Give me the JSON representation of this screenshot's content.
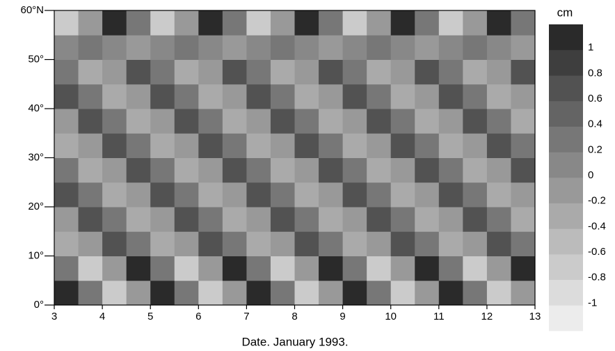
{
  "chart_data": {
    "type": "heatmap",
    "xlabel": "Date. January 1993.",
    "xlim": [
      3,
      13
    ],
    "xticks": [
      3,
      4,
      5,
      6,
      7,
      8,
      9,
      10,
      11,
      12,
      13
    ],
    "ylim": [
      0,
      60
    ],
    "yticks": [
      {
        "value": 0,
        "label": "0°"
      },
      {
        "value": 10,
        "label": "10°"
      },
      {
        "value": 20,
        "label": "20°"
      },
      {
        "value": 30,
        "label": "30°"
      },
      {
        "value": 40,
        "label": "40°"
      },
      {
        "value": 50,
        "label": "50°"
      },
      {
        "value": 60,
        "label": "60°N"
      }
    ],
    "x": [
      3.25,
      3.75,
      4.25,
      4.75,
      5.25,
      5.75,
      6.25,
      6.75,
      7.25,
      7.75,
      8.25,
      8.75,
      9.25,
      9.75,
      10.25,
      10.75,
      11.25,
      11.75,
      12.25,
      12.75
    ],
    "y": [
      2.5,
      7.5,
      12.5,
      17.5,
      22.5,
      27.5,
      32.5,
      37.5,
      42.5,
      47.5,
      52.5,
      57.5
    ],
    "z": [
      [
        1,
        0.2,
        -0.8,
        -0.2,
        1,
        0.2,
        -0.8,
        -0.2,
        1,
        0.2,
        -0.8,
        -0.2,
        1,
        0.2,
        -0.8,
        -0.2,
        1,
        0.2,
        -0.8,
        -0.2
      ],
      [
        0.2,
        -0.8,
        -0.2,
        1,
        0.2,
        -0.8,
        -0.2,
        1,
        0.2,
        -0.8,
        -0.2,
        1,
        0.2,
        -0.8,
        -0.2,
        1,
        0.2,
        -0.8,
        -0.2,
        1
      ],
      [
        -0.4,
        -0.2,
        0.6,
        0.2,
        -0.4,
        -0.2,
        0.6,
        0.2,
        -0.4,
        -0.2,
        0.6,
        0.2,
        -0.4,
        -0.2,
        0.6,
        0.2,
        -0.4,
        -0.2,
        0.6,
        0.2
      ],
      [
        -0.2,
        0.6,
        0.2,
        -0.4,
        -0.2,
        0.6,
        0.2,
        -0.4,
        -0.2,
        0.6,
        0.2,
        -0.4,
        -0.2,
        0.6,
        0.2,
        -0.4,
        -0.2,
        0.6,
        0.2,
        -0.4
      ],
      [
        0.6,
        0.2,
        -0.4,
        -0.2,
        0.6,
        0.2,
        -0.4,
        -0.2,
        0.6,
        0.2,
        -0.4,
        -0.2,
        0.6,
        0.2,
        -0.4,
        -0.2,
        0.6,
        0.2,
        -0.4,
        -0.2
      ],
      [
        0.2,
        -0.4,
        -0.2,
        0.6,
        0.2,
        -0.4,
        -0.2,
        0.6,
        0.2,
        -0.4,
        -0.2,
        0.6,
        0.2,
        -0.4,
        -0.2,
        0.6,
        0.2,
        -0.4,
        -0.2,
        0.6
      ],
      [
        -0.4,
        -0.2,
        0.6,
        0.2,
        -0.4,
        -0.2,
        0.6,
        0.2,
        -0.4,
        -0.2,
        0.6,
        0.2,
        -0.4,
        -0.2,
        0.6,
        0.2,
        -0.4,
        -0.2,
        0.6,
        0.2
      ],
      [
        -0.2,
        0.6,
        0.2,
        -0.4,
        -0.2,
        0.6,
        0.2,
        -0.4,
        -0.2,
        0.6,
        0.2,
        -0.4,
        -0.2,
        0.6,
        0.2,
        -0.4,
        -0.2,
        0.6,
        0.2,
        -0.4
      ],
      [
        0.6,
        0.2,
        -0.4,
        -0.2,
        0.6,
        0.2,
        -0.4,
        -0.2,
        0.6,
        0.2,
        -0.4,
        -0.2,
        0.6,
        0.2,
        -0.4,
        -0.2,
        0.6,
        0.2,
        -0.4,
        -0.2
      ],
      [
        0.2,
        -0.4,
        -0.2,
        0.6,
        0.2,
        -0.4,
        -0.2,
        0.6,
        0.2,
        -0.4,
        -0.2,
        0.6,
        0.2,
        -0.4,
        -0.2,
        0.6,
        0.2,
        -0.4,
        -0.2,
        0.6
      ],
      [
        0,
        0.2,
        0,
        -0.2,
        0,
        0.2,
        0,
        -0.2,
        0,
        0.2,
        0,
        -0.2,
        0,
        0.2,
        0,
        -0.2,
        0,
        0.2,
        0,
        -0.2
      ],
      [
        -0.8,
        -0.2,
        1,
        0.2,
        -0.8,
        -0.2,
        1,
        0.2,
        -0.8,
        -0.2,
        1,
        0.2,
        -0.8,
        -0.2,
        1,
        0.2,
        -0.8,
        -0.2,
        1,
        0.2
      ]
    ],
    "colorbar_title": "cm",
    "levels": [
      -1.2,
      -1,
      -0.8,
      -0.6,
      -0.4,
      -0.2,
      0,
      0.2,
      0.4,
      0.6,
      0.8,
      1,
      1.2
    ],
    "colors": [
      "#ececec",
      "#dcdcdc",
      "#cbcbcb",
      "#bbbbbb",
      "#aaaaaa",
      "#999999",
      "#888888",
      "#777777",
      "#646464",
      "#525252",
      "#3e3e3e",
      "#2a2a2a",
      "#161616"
    ],
    "cbar_ticks": [
      1,
      0.8,
      0.6,
      0.4,
      0.2,
      0,
      -0.2,
      -0.4,
      -0.6,
      -0.8,
      -1
    ]
  }
}
